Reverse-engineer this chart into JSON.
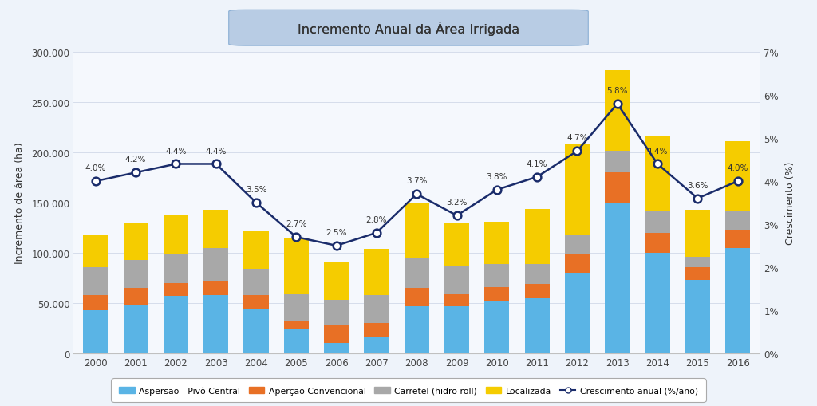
{
  "years": [
    2000,
    2001,
    2002,
    2003,
    2004,
    2005,
    2006,
    2007,
    2008,
    2009,
    2010,
    2011,
    2012,
    2013,
    2014,
    2015,
    2016
  ],
  "pivo_central": [
    43000,
    48000,
    57000,
    58000,
    44000,
    24000,
    10000,
    16000,
    47000,
    47000,
    52000,
    55000,
    80000,
    150000,
    100000,
    73000,
    105000
  ],
  "aspersao_conv": [
    15000,
    17000,
    13000,
    14000,
    14000,
    8000,
    18000,
    14000,
    18000,
    12000,
    14000,
    14000,
    18000,
    30000,
    20000,
    13000,
    18000
  ],
  "carretel": [
    28000,
    28000,
    28000,
    33000,
    26000,
    27000,
    25000,
    28000,
    30000,
    28000,
    23000,
    20000,
    20000,
    22000,
    22000,
    10000,
    18000
  ],
  "localizada": [
    32000,
    36000,
    40000,
    38000,
    38000,
    55000,
    38000,
    46000,
    55000,
    43000,
    42000,
    55000,
    90000,
    80000,
    75000,
    47000,
    70000
  ],
  "crescimento": [
    4.0,
    4.2,
    4.4,
    4.4,
    3.5,
    2.7,
    2.5,
    2.8,
    3.7,
    3.2,
    3.8,
    4.1,
    4.7,
    5.8,
    4.4,
    3.6,
    4.0
  ],
  "bar_colors": [
    "#5ab4e5",
    "#e87025",
    "#a8a8a8",
    "#f5cc00"
  ],
  "line_color": "#1a2c6b",
  "title": "Incremento Anual da Área Irrigada",
  "ylabel_left": "Incremento de área (ha)",
  "ylabel_right": "Crescimento (%)",
  "title_box_color": "#b8cce4",
  "bg_color": "#eef3fa",
  "plot_bg_color": "#f5f8fd",
  "legend_labels": [
    "Aspersão - Pivô Central",
    "Aperção Convencional",
    "Carretel (hidro roll)",
    "Localizada",
    "Crescimento anual (%/ano)"
  ],
  "ylim_left": [
    0,
    300000
  ],
  "ylim_right": [
    0,
    7
  ],
  "yticks_left": [
    0,
    50000,
    100000,
    150000,
    200000,
    250000,
    300000
  ],
  "yticks_right": [
    0,
    1,
    2,
    3,
    4,
    5,
    6,
    7
  ]
}
